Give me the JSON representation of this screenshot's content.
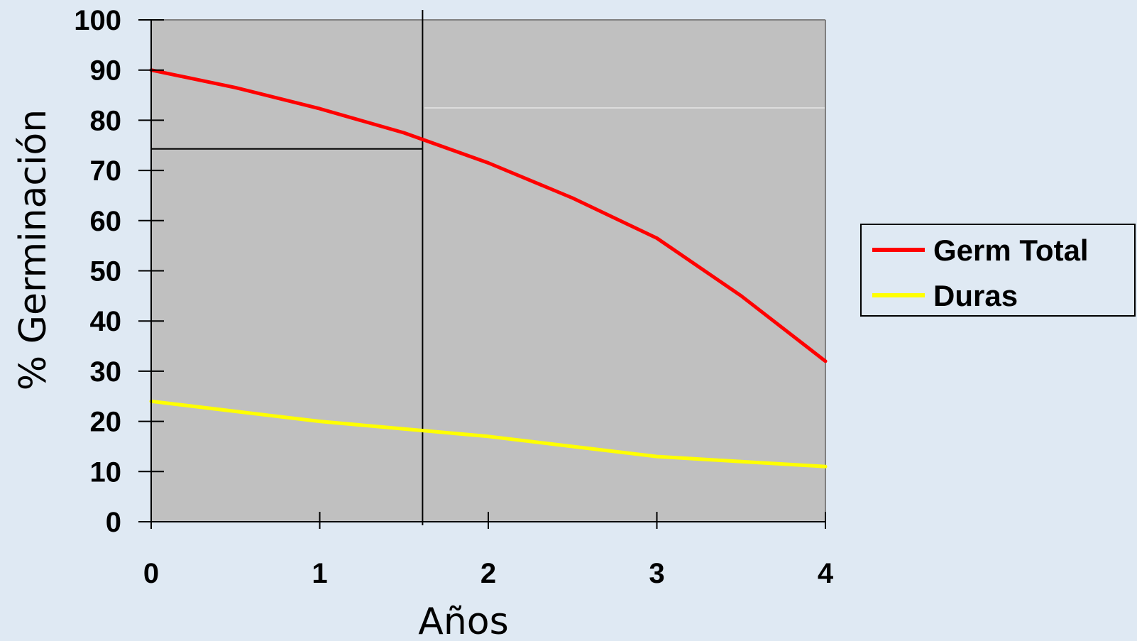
{
  "chart_data": {
    "type": "line",
    "title": "",
    "xlabel": "Años",
    "ylabel": "% Germinación",
    "xlim": [
      0,
      4
    ],
    "ylim": [
      0,
      100
    ],
    "x_ticks": [
      "0",
      "1",
      "2",
      "3",
      "4"
    ],
    "y_ticks": [
      "0",
      "10",
      "20",
      "30",
      "40",
      "50",
      "60",
      "70",
      "80",
      "90",
      "100"
    ],
    "grid": false,
    "legend_position": "right",
    "plot_background": "#c0c0c0",
    "series": [
      {
        "name": "Germ Total",
        "color": "#ff0000",
        "x": [
          0,
          0.5,
          1,
          1.5,
          2,
          2.5,
          3,
          3.5,
          4
        ],
        "y": [
          90,
          86.5,
          82.3,
          77.5,
          71.5,
          64.5,
          56.5,
          45,
          32
        ]
      },
      {
        "name": "Duras",
        "color": "#ffff00",
        "x": [
          0,
          0.5,
          1,
          1.5,
          2,
          2.5,
          3,
          3.5,
          4
        ],
        "y": [
          24,
          22,
          20,
          18.5,
          17,
          15,
          13,
          12,
          11
        ]
      }
    ],
    "annotations": {
      "vertical_line_x": 1.61,
      "horizontal_line_y": 74.3
    }
  }
}
